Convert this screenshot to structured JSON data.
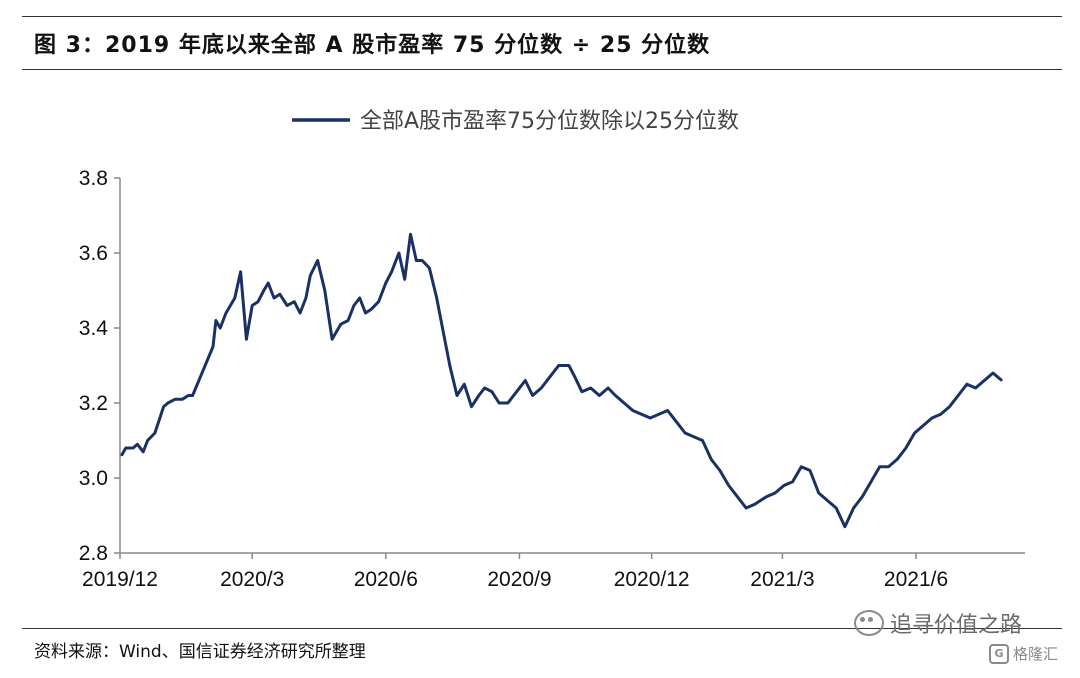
{
  "figure": {
    "title": "图 3：2019 年底以来全部 A 股市盈率 75 分位数 ÷ 25 分位数",
    "source": "资料来源：Wind、国信证券经济研究所整理",
    "watermark": "追寻价值之路",
    "watermark_icon": "wechat-icon",
    "watermark2": "格隆汇",
    "watermark2_icon": "G"
  },
  "chart_data": {
    "type": "line",
    "title": "",
    "xlabel": "",
    "ylabel": "",
    "ylim": [
      2.8,
      3.8
    ],
    "yticks": [
      "2.8",
      "3.0",
      "3.2",
      "3.4",
      "3.6",
      "3.8"
    ],
    "xticks": [
      "2019/12",
      "2020/3",
      "2020/6",
      "2020/9",
      "2020/12",
      "2021/3",
      "2021/6"
    ],
    "xlim": [
      "2019-12-01",
      "2021-08-15"
    ],
    "grid": false,
    "legend_position": "top-center",
    "colors": {
      "series": "#1a3163",
      "axis": "#888888"
    },
    "series": [
      {
        "name": "全部A股市盈率75分位数除以25分位数",
        "x": [
          "2019-12-02",
          "2019-12-05",
          "2019-12-10",
          "2019-12-13",
          "2019-12-17",
          "2019-12-20",
          "2019-12-25",
          "2019-12-31",
          "2020-01-03",
          "2020-01-08",
          "2020-01-13",
          "2020-01-17",
          "2020-01-20",
          "2020-02-03",
          "2020-02-05",
          "2020-02-08",
          "2020-02-12",
          "2020-02-18",
          "2020-02-22",
          "2020-02-26",
          "2020-03-01",
          "2020-03-05",
          "2020-03-09",
          "2020-03-12",
          "2020-03-16",
          "2020-03-20",
          "2020-03-25",
          "2020-03-30",
          "2020-04-03",
          "2020-04-07",
          "2020-04-10",
          "2020-04-15",
          "2020-04-20",
          "2020-04-25",
          "2020-05-01",
          "2020-05-06",
          "2020-05-10",
          "2020-05-14",
          "2020-05-18",
          "2020-05-22",
          "2020-05-27",
          "2020-06-01",
          "2020-06-05",
          "2020-06-10",
          "2020-06-14",
          "2020-06-18",
          "2020-06-22",
          "2020-06-26",
          "2020-07-01",
          "2020-07-06",
          "2020-07-10",
          "2020-07-15",
          "2020-07-20",
          "2020-07-25",
          "2020-07-30",
          "2020-08-04",
          "2020-08-08",
          "2020-08-13",
          "2020-08-18",
          "2020-08-24",
          "2020-08-30",
          "2020-09-05",
          "2020-09-10",
          "2020-09-16",
          "2020-09-22",
          "2020-09-28",
          "2020-10-05",
          "2020-10-09",
          "2020-10-14",
          "2020-10-20",
          "2020-10-26",
          "2020-11-01",
          "2020-11-06",
          "2020-11-12",
          "2020-11-18",
          "2020-11-24",
          "2020-11-30",
          "2020-12-06",
          "2020-12-12",
          "2020-12-18",
          "2020-12-24",
          "2020-12-30",
          "2021-01-05",
          "2021-01-11",
          "2021-01-17",
          "2021-01-23",
          "2021-01-29",
          "2021-02-04",
          "2021-02-10",
          "2021-02-18",
          "2021-02-24",
          "2021-03-02",
          "2021-03-08",
          "2021-03-14",
          "2021-03-20",
          "2021-03-26",
          "2021-04-01",
          "2021-04-07",
          "2021-04-13",
          "2021-04-19",
          "2021-04-25",
          "2021-05-01",
          "2021-05-07",
          "2021-05-13",
          "2021-05-19",
          "2021-05-25",
          "2021-05-31",
          "2021-06-06",
          "2021-06-12",
          "2021-06-18",
          "2021-06-24",
          "2021-06-30",
          "2021-07-06",
          "2021-07-12",
          "2021-07-18",
          "2021-07-24",
          "2021-07-30"
        ],
        "values": [
          3.06,
          3.08,
          3.08,
          3.09,
          3.07,
          3.1,
          3.12,
          3.19,
          3.2,
          3.21,
          3.21,
          3.22,
          3.22,
          3.35,
          3.42,
          3.4,
          3.44,
          3.48,
          3.55,
          3.37,
          3.46,
          3.47,
          3.5,
          3.52,
          3.48,
          3.49,
          3.46,
          3.47,
          3.44,
          3.48,
          3.54,
          3.58,
          3.5,
          3.37,
          3.41,
          3.42,
          3.46,
          3.48,
          3.44,
          3.45,
          3.47,
          3.52,
          3.55,
          3.6,
          3.53,
          3.65,
          3.58,
          3.58,
          3.56,
          3.48,
          3.4,
          3.3,
          3.22,
          3.25,
          3.19,
          3.22,
          3.24,
          3.23,
          3.2,
          3.2,
          3.23,
          3.26,
          3.22,
          3.24,
          3.27,
          3.3,
          3.3,
          3.27,
          3.23,
          3.24,
          3.22,
          3.24,
          3.22,
          3.2,
          3.18,
          3.17,
          3.16,
          3.17,
          3.18,
          3.15,
          3.12,
          3.11,
          3.1,
          3.05,
          3.02,
          2.98,
          2.95,
          2.92,
          2.93,
          2.95,
          2.96,
          2.98,
          2.99,
          3.03,
          3.02,
          2.96,
          2.94,
          2.92,
          2.87,
          2.92,
          2.95,
          2.99,
          3.03,
          3.03,
          3.05,
          3.08,
          3.12,
          3.14,
          3.16,
          3.17,
          3.19,
          3.22,
          3.25,
          3.24,
          3.26,
          3.28,
          3.26
        ]
      }
    ]
  }
}
